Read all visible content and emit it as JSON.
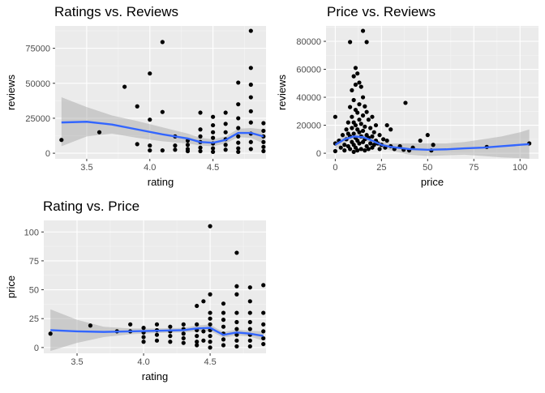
{
  "chart_data": [
    {
      "type": "scatter",
      "title": "Ratings vs. Reviews",
      "xlabel": "rating",
      "ylabel": "reviews",
      "xlim": [
        3.25,
        4.92
      ],
      "ylim": [
        -4000,
        91000
      ],
      "xticks": [
        3.5,
        4.0,
        4.5
      ],
      "xtick_labels": [
        "3.5",
        "4.0",
        "4.5"
      ],
      "yticks": [
        0,
        25000,
        50000,
        75000
      ],
      "ytick_labels": [
        "0",
        "25000",
        "50000",
        "75000"
      ],
      "grid": true,
      "points": [
        [
          3.3,
          9500
        ],
        [
          3.6,
          15000
        ],
        [
          3.8,
          47500
        ],
        [
          3.9,
          33500
        ],
        [
          3.9,
          6500
        ],
        [
          4.0,
          57000
        ],
        [
          4.0,
          24000
        ],
        [
          4.0,
          5500
        ],
        [
          4.0,
          2000
        ],
        [
          4.1,
          79500
        ],
        [
          4.1,
          29500
        ],
        [
          4.1,
          2000
        ],
        [
          4.2,
          12000
        ],
        [
          4.2,
          5500
        ],
        [
          4.2,
          2500
        ],
        [
          4.3,
          9000
        ],
        [
          4.3,
          6000
        ],
        [
          4.3,
          3000
        ],
        [
          4.3,
          1500
        ],
        [
          4.4,
          29000
        ],
        [
          4.4,
          17000
        ],
        [
          4.4,
          12000
        ],
        [
          4.4,
          8000
        ],
        [
          4.4,
          4000
        ],
        [
          4.4,
          1500
        ],
        [
          4.5,
          26000
        ],
        [
          4.5,
          20000
        ],
        [
          4.5,
          15000
        ],
        [
          4.5,
          11000
        ],
        [
          4.5,
          7000
        ],
        [
          4.5,
          3500
        ],
        [
          4.5,
          1000
        ],
        [
          4.6,
          29000
        ],
        [
          4.6,
          21000
        ],
        [
          4.6,
          15000
        ],
        [
          4.6,
          10000
        ],
        [
          4.6,
          6000
        ],
        [
          4.6,
          2500
        ],
        [
          4.7,
          50500
        ],
        [
          4.7,
          35000
        ],
        [
          4.7,
          25000
        ],
        [
          4.7,
          18000
        ],
        [
          4.7,
          12000
        ],
        [
          4.7,
          7500
        ],
        [
          4.7,
          3500
        ],
        [
          4.7,
          1000
        ],
        [
          4.8,
          87500
        ],
        [
          4.8,
          61000
        ],
        [
          4.8,
          49000
        ],
        [
          4.8,
          40000
        ],
        [
          4.8,
          30000
        ],
        [
          4.8,
          22000
        ],
        [
          4.8,
          14000
        ],
        [
          4.8,
          8000
        ],
        [
          4.8,
          3000
        ],
        [
          4.9,
          21500
        ],
        [
          4.9,
          16000
        ],
        [
          4.9,
          12000
        ],
        [
          4.9,
          8000
        ],
        [
          4.9,
          4500
        ],
        [
          4.9,
          1500
        ]
      ],
      "smooth": [
        [
          3.3,
          22000
        ],
        [
          3.5,
          22500
        ],
        [
          3.7,
          20500
        ],
        [
          3.9,
          17000
        ],
        [
          4.1,
          13500
        ],
        [
          4.3,
          10500
        ],
        [
          4.4,
          8000
        ],
        [
          4.5,
          7500
        ],
        [
          4.6,
          9500
        ],
        [
          4.7,
          14500
        ],
        [
          4.8,
          14500
        ],
        [
          4.9,
          12000
        ]
      ],
      "band_upper": [
        [
          3.3,
          40000
        ],
        [
          3.5,
          33000
        ],
        [
          3.7,
          27000
        ],
        [
          3.9,
          23000
        ],
        [
          4.1,
          18500
        ],
        [
          4.3,
          14000
        ],
        [
          4.4,
          11000
        ],
        [
          4.5,
          10000
        ],
        [
          4.6,
          12000
        ],
        [
          4.7,
          17500
        ],
        [
          4.8,
          18000
        ],
        [
          4.9,
          17000
        ]
      ],
      "band_lower": [
        [
          3.3,
          5000
        ],
        [
          3.5,
          12000
        ],
        [
          3.7,
          14000
        ],
        [
          3.9,
          11000
        ],
        [
          4.1,
          8500
        ],
        [
          4.3,
          7000
        ],
        [
          4.4,
          5500
        ],
        [
          4.5,
          5000
        ],
        [
          4.6,
          7000
        ],
        [
          4.7,
          11500
        ],
        [
          4.8,
          11000
        ],
        [
          4.9,
          7000
        ]
      ]
    },
    {
      "type": "scatter",
      "title": "Price vs. Reviews",
      "xlabel": "price",
      "ylabel": "reviews",
      "xlim": [
        -5,
        110
      ],
      "ylim": [
        -4000,
        91000
      ],
      "xticks": [
        0,
        25,
        50,
        75,
        100
      ],
      "xtick_labels": [
        "0",
        "25",
        "50",
        "75",
        "100"
      ],
      "yticks": [
        0,
        20000,
        40000,
        60000,
        80000
      ],
      "ytick_labels": [
        "0",
        "20000",
        "40000",
        "60000",
        "80000"
      ],
      "grid": true,
      "points": [
        [
          0,
          26000
        ],
        [
          0,
          7000
        ],
        [
          0,
          1500
        ],
        [
          2,
          9000
        ],
        [
          3,
          4000
        ],
        [
          4,
          13000
        ],
        [
          5,
          6000
        ],
        [
          5,
          2000
        ],
        [
          6,
          17000
        ],
        [
          6,
          10000
        ],
        [
          7,
          22000
        ],
        [
          7,
          14000
        ],
        [
          7,
          5000
        ],
        [
          8,
          79500
        ],
        [
          8,
          33000
        ],
        [
          8,
          12000
        ],
        [
          8,
          3000
        ],
        [
          9,
          45000
        ],
        [
          9,
          26000
        ],
        [
          9,
          18000
        ],
        [
          9,
          8000
        ],
        [
          10,
          55000
        ],
        [
          10,
          38000
        ],
        [
          10,
          22000
        ],
        [
          10,
          14000
        ],
        [
          10,
          6000
        ],
        [
          10,
          1000
        ],
        [
          11,
          61000
        ],
        [
          11,
          49000
        ],
        [
          11,
          31000
        ],
        [
          11,
          20000
        ],
        [
          11,
          11000
        ],
        [
          11,
          4000
        ],
        [
          12,
          57000
        ],
        [
          12,
          29000
        ],
        [
          12,
          17000
        ],
        [
          12,
          9000
        ],
        [
          12,
          2000
        ],
        [
          13,
          50500
        ],
        [
          13,
          35000
        ],
        [
          13,
          24000
        ],
        [
          13,
          15000
        ],
        [
          13,
          7000
        ],
        [
          14,
          47500
        ],
        [
          14,
          21000
        ],
        [
          14,
          12000
        ],
        [
          14,
          3000
        ],
        [
          15,
          87500
        ],
        [
          15,
          40000
        ],
        [
          15,
          27000
        ],
        [
          15,
          16000
        ],
        [
          15,
          8000
        ],
        [
          16,
          33500
        ],
        [
          16,
          19000
        ],
        [
          16,
          10000
        ],
        [
          16,
          2000
        ],
        [
          17,
          79500
        ],
        [
          17,
          29500
        ],
        [
          17,
          13000
        ],
        [
          17,
          5000
        ],
        [
          18,
          24000
        ],
        [
          18,
          11000
        ],
        [
          18,
          3000
        ],
        [
          19,
          18000
        ],
        [
          19,
          7000
        ],
        [
          20,
          26000
        ],
        [
          20,
          12000
        ],
        [
          20,
          4000
        ],
        [
          21,
          15000
        ],
        [
          21,
          6000
        ],
        [
          22,
          20000
        ],
        [
          22,
          9000
        ],
        [
          23,
          7000
        ],
        [
          24,
          13000
        ],
        [
          24,
          3000
        ],
        [
          25,
          6000
        ],
        [
          26,
          10000
        ],
        [
          27,
          4000
        ],
        [
          28,
          20000
        ],
        [
          28,
          9000
        ],
        [
          30,
          17000
        ],
        [
          30,
          5000
        ],
        [
          32,
          3000
        ],
        [
          35,
          5000
        ],
        [
          37,
          2500
        ],
        [
          38,
          36000
        ],
        [
          40,
          2000
        ],
        [
          42,
          4000
        ],
        [
          46,
          9000
        ],
        [
          50,
          13000
        ],
        [
          52,
          2000
        ],
        [
          53,
          6000
        ],
        [
          82,
          4500
        ],
        [
          105,
          7000
        ]
      ],
      "smooth": [
        [
          0,
          6000
        ],
        [
          5,
          10000
        ],
        [
          10,
          12000
        ],
        [
          15,
          11500
        ],
        [
          20,
          9000
        ],
        [
          25,
          6000
        ],
        [
          30,
          4500
        ],
        [
          40,
          3000
        ],
        [
          50,
          2500
        ],
        [
          60,
          2800
        ],
        [
          70,
          3500
        ],
        [
          80,
          4000
        ],
        [
          90,
          5000
        ],
        [
          100,
          6000
        ],
        [
          105,
          6500
        ]
      ],
      "band_upper": [
        [
          0,
          9000
        ],
        [
          5,
          12500
        ],
        [
          10,
          14000
        ],
        [
          15,
          13500
        ],
        [
          20,
          11000
        ],
        [
          25,
          8000
        ],
        [
          30,
          7000
        ],
        [
          40,
          7000
        ],
        [
          50,
          7000
        ],
        [
          60,
          7000
        ],
        [
          70,
          8000
        ],
        [
          80,
          10000
        ],
        [
          90,
          12000
        ],
        [
          100,
          15000
        ],
        [
          105,
          17000
        ]
      ],
      "band_lower": [
        [
          0,
          3000
        ],
        [
          5,
          7500
        ],
        [
          10,
          10000
        ],
        [
          15,
          9500
        ],
        [
          20,
          7000
        ],
        [
          25,
          4000
        ],
        [
          30,
          2000
        ],
        [
          40,
          -1000
        ],
        [
          50,
          -2000
        ],
        [
          60,
          -1500
        ],
        [
          70,
          -1000
        ],
        [
          80,
          -2000
        ],
        [
          90,
          -3000
        ],
        [
          100,
          -3500
        ],
        [
          105,
          -4000
        ]
      ]
    },
    {
      "type": "scatter",
      "title": "Rating vs. Price",
      "xlabel": "rating",
      "ylabel": "price",
      "xlim": [
        3.25,
        4.92
      ],
      "ylim": [
        -5,
        110
      ],
      "xticks": [
        3.5,
        4.0,
        4.5
      ],
      "xtick_labels": [
        "3.5",
        "4.0",
        "4.5"
      ],
      "yticks": [
        0,
        25,
        50,
        75,
        100
      ],
      "ytick_labels": [
        "0",
        "25",
        "50",
        "75",
        "100"
      ],
      "grid": true,
      "points": [
        [
          3.3,
          12
        ],
        [
          3.6,
          19
        ],
        [
          3.8,
          14
        ],
        [
          3.9,
          20
        ],
        [
          3.9,
          14
        ],
        [
          4.0,
          17
        ],
        [
          4.0,
          13
        ],
        [
          4.0,
          9
        ],
        [
          4.0,
          5
        ],
        [
          4.1,
          20
        ],
        [
          4.1,
          15
        ],
        [
          4.1,
          11
        ],
        [
          4.1,
          6
        ],
        [
          4.2,
          18
        ],
        [
          4.2,
          14
        ],
        [
          4.2,
          10
        ],
        [
          4.2,
          5
        ],
        [
          4.3,
          20
        ],
        [
          4.3,
          16
        ],
        [
          4.3,
          12
        ],
        [
          4.3,
          8
        ],
        [
          4.3,
          4
        ],
        [
          4.4,
          36
        ],
        [
          4.4,
          20
        ],
        [
          4.4,
          15
        ],
        [
          4.4,
          10
        ],
        [
          4.4,
          5
        ],
        [
          4.4,
          2
        ],
        [
          4.45,
          40
        ],
        [
          4.45,
          14
        ],
        [
          4.45,
          6
        ],
        [
          4.5,
          105
        ],
        [
          4.5,
          46
        ],
        [
          4.5,
          30
        ],
        [
          4.5,
          25
        ],
        [
          4.5,
          20
        ],
        [
          4.5,
          15
        ],
        [
          4.5,
          10
        ],
        [
          4.5,
          5
        ],
        [
          4.5,
          0
        ],
        [
          4.6,
          38
        ],
        [
          4.6,
          30
        ],
        [
          4.6,
          24
        ],
        [
          4.6,
          18
        ],
        [
          4.6,
          12
        ],
        [
          4.6,
          7
        ],
        [
          4.6,
          2
        ],
        [
          4.7,
          82
        ],
        [
          4.7,
          53
        ],
        [
          4.7,
          46
        ],
        [
          4.7,
          30
        ],
        [
          4.7,
          22
        ],
        [
          4.7,
          16
        ],
        [
          4.7,
          11
        ],
        [
          4.7,
          6
        ],
        [
          4.7,
          1
        ],
        [
          4.8,
          52
        ],
        [
          4.8,
          40
        ],
        [
          4.8,
          30
        ],
        [
          4.8,
          22
        ],
        [
          4.8,
          16
        ],
        [
          4.8,
          11
        ],
        [
          4.8,
          6
        ],
        [
          4.8,
          1
        ],
        [
          4.9,
          54
        ],
        [
          4.9,
          30
        ],
        [
          4.9,
          20
        ],
        [
          4.9,
          14
        ],
        [
          4.9,
          8
        ],
        [
          4.9,
          3
        ]
      ],
      "smooth": [
        [
          3.3,
          15
        ],
        [
          3.5,
          14
        ],
        [
          3.7,
          13.5
        ],
        [
          3.9,
          14
        ],
        [
          4.1,
          14.5
        ],
        [
          4.3,
          15
        ],
        [
          4.4,
          16.5
        ],
        [
          4.5,
          17
        ],
        [
          4.55,
          14
        ],
        [
          4.6,
          11
        ],
        [
          4.7,
          13
        ],
        [
          4.8,
          12
        ],
        [
          4.9,
          10
        ]
      ],
      "band_upper": [
        [
          3.3,
          33
        ],
        [
          3.5,
          24
        ],
        [
          3.7,
          18
        ],
        [
          3.9,
          16.5
        ],
        [
          4.1,
          16.5
        ],
        [
          4.3,
          17
        ],
        [
          4.4,
          19
        ],
        [
          4.5,
          20
        ],
        [
          4.55,
          16.5
        ],
        [
          4.6,
          13.5
        ],
        [
          4.7,
          15.5
        ],
        [
          4.8,
          14.5
        ],
        [
          4.9,
          14
        ]
      ],
      "band_lower": [
        [
          3.3,
          -3
        ],
        [
          3.5,
          4
        ],
        [
          3.7,
          9
        ],
        [
          3.9,
          11.5
        ],
        [
          4.1,
          12.5
        ],
        [
          4.3,
          13
        ],
        [
          4.4,
          14
        ],
        [
          4.5,
          14
        ],
        [
          4.55,
          11.5
        ],
        [
          4.6,
          8.5
        ],
        [
          4.7,
          10.5
        ],
        [
          4.8,
          9.5
        ],
        [
          4.9,
          6
        ]
      ]
    }
  ]
}
